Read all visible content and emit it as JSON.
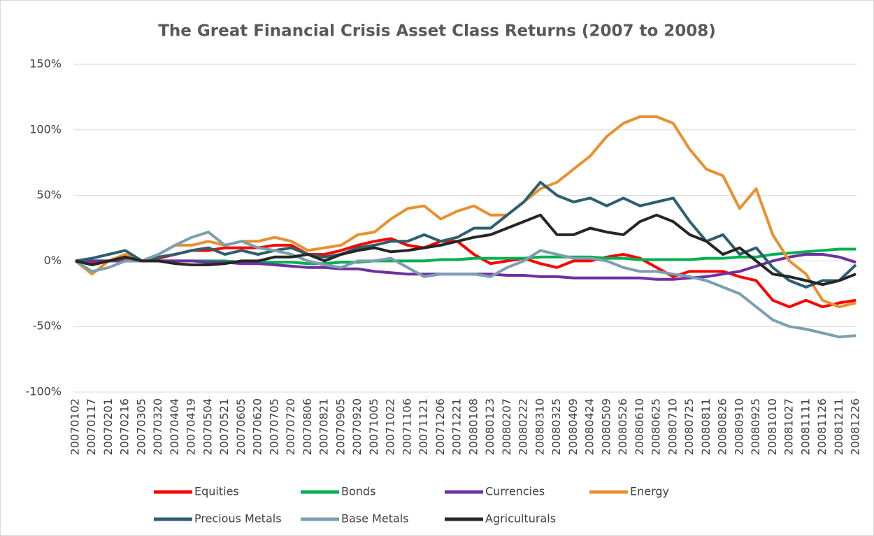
{
  "chart_data": {
    "type": "line",
    "title": "The Great Financial Crisis Asset Class Returns (2007 to 2008)",
    "categories": [
      "20070102",
      "20070117",
      "20070201",
      "20070216",
      "20070305",
      "20070320",
      "20070404",
      "20070419",
      "20070504",
      "20070521",
      "20070605",
      "20070620",
      "20070705",
      "20070720",
      "20070806",
      "20070821",
      "20070905",
      "20070920",
      "20071005",
      "20071022",
      "20071106",
      "20071121",
      "20071206",
      "20071221",
      "20080108",
      "20080123",
      "20080207",
      "20080222",
      "20080310",
      "20080325",
      "20080409",
      "20080424",
      "20080509",
      "20080526",
      "20080610",
      "20080625",
      "20080710",
      "20080725",
      "20080811",
      "20080826",
      "20080910",
      "20080925",
      "20081010",
      "20081027",
      "20081111",
      "20081126",
      "20081211",
      "20081226"
    ],
    "series": [
      {
        "name": "Equities",
        "color": "#ff0000",
        "values": [
          0,
          -2,
          0,
          2,
          0,
          2,
          5,
          8,
          8,
          10,
          10,
          10,
          12,
          12,
          5,
          5,
          8,
          12,
          15,
          17,
          12,
          10,
          15,
          15,
          5,
          -2,
          0,
          2,
          -2,
          -5,
          0,
          0,
          3,
          5,
          2,
          -5,
          -12,
          -8,
          -8,
          -8,
          -12,
          -15,
          -30,
          -35,
          -30,
          -35,
          -32,
          -30
        ]
      },
      {
        "name": "Bonds",
        "color": "#00b050",
        "values": [
          0,
          0,
          0,
          0,
          0,
          0,
          0,
          0,
          0,
          0,
          -1,
          -1,
          -1,
          -1,
          -2,
          -2,
          -1,
          -1,
          0,
          0,
          0,
          0,
          1,
          1,
          2,
          2,
          2,
          2,
          3,
          3,
          3,
          3,
          2,
          2,
          1,
          1,
          1,
          1,
          2,
          2,
          3,
          3,
          5,
          6,
          7,
          8,
          9,
          9
        ]
      },
      {
        "name": "Currencies",
        "color": "#7030a0",
        "values": [
          0,
          0,
          0,
          0,
          0,
          0,
          0,
          0,
          -1,
          -1,
          -2,
          -2,
          -3,
          -4,
          -5,
          -5,
          -6,
          -6,
          -8,
          -9,
          -10,
          -10,
          -10,
          -10,
          -10,
          -10,
          -11,
          -11,
          -12,
          -12,
          -13,
          -13,
          -13,
          -13,
          -13,
          -14,
          -14,
          -13,
          -12,
          -10,
          -8,
          -4,
          0,
          3,
          5,
          5,
          3,
          -1
        ]
      },
      {
        "name": "Energy",
        "color": "#e8912e",
        "values": [
          0,
          -10,
          0,
          5,
          0,
          5,
          12,
          12,
          15,
          12,
          15,
          15,
          18,
          15,
          8,
          10,
          12,
          20,
          22,
          32,
          40,
          42,
          32,
          38,
          42,
          35,
          35,
          45,
          55,
          60,
          70,
          80,
          95,
          105,
          110,
          110,
          105,
          85,
          70,
          65,
          40,
          55,
          20,
          0,
          -10,
          -30,
          -35,
          -32
        ]
      },
      {
        "name": "Precious Metals",
        "color": "#2e5f6e",
        "values": [
          0,
          2,
          5,
          8,
          0,
          3,
          5,
          8,
          10,
          5,
          8,
          5,
          8,
          10,
          5,
          3,
          5,
          10,
          12,
          15,
          15,
          20,
          15,
          18,
          25,
          25,
          35,
          45,
          60,
          50,
          45,
          48,
          42,
          48,
          42,
          45,
          48,
          30,
          15,
          20,
          5,
          10,
          -5,
          -15,
          -20,
          -15,
          -15,
          -3
        ]
      },
      {
        "name": "Base Metals",
        "color": "#7b9fb0",
        "values": [
          0,
          -8,
          -5,
          0,
          0,
          5,
          12,
          18,
          22,
          12,
          15,
          10,
          8,
          5,
          0,
          -3,
          -5,
          0,
          0,
          2,
          -5,
          -12,
          -10,
          -10,
          -10,
          -12,
          -5,
          0,
          8,
          5,
          2,
          2,
          0,
          -5,
          -8,
          -8,
          -10,
          -12,
          -15,
          -20,
          -25,
          -35,
          -45,
          -50,
          -52,
          -55,
          -58,
          -57
        ]
      },
      {
        "name": "Agriculturals",
        "color": "#262626",
        "values": [
          0,
          -3,
          0,
          3,
          0,
          0,
          -2,
          -3,
          -3,
          -2,
          0,
          0,
          3,
          3,
          5,
          0,
          5,
          8,
          10,
          7,
          8,
          10,
          12,
          15,
          18,
          20,
          25,
          30,
          35,
          20,
          20,
          25,
          22,
          20,
          30,
          35,
          30,
          20,
          15,
          5,
          10,
          0,
          -10,
          -12,
          -15,
          -18,
          -15,
          -10
        ]
      }
    ],
    "ylim": [
      -100,
      150
    ],
    "yticks": [
      {
        "value": -100,
        "label": "-100%"
      },
      {
        "value": -50,
        "label": "-50%"
      },
      {
        "value": 0,
        "label": "0%"
      },
      {
        "value": 50,
        "label": "50%"
      },
      {
        "value": 100,
        "label": "100%"
      },
      {
        "value": 150,
        "label": "150%"
      }
    ],
    "grid": true
  }
}
